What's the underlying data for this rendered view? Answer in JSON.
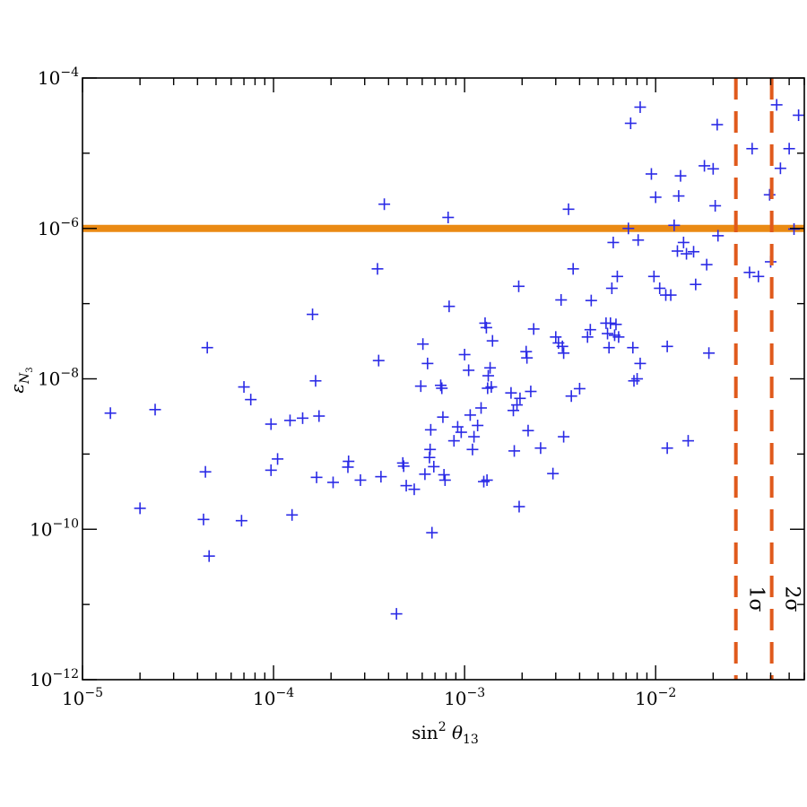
{
  "chart_data": {
    "type": "scatter",
    "x_scale": "log",
    "y_scale": "log",
    "xlim": [
      1e-05,
      0.06
    ],
    "ylim": [
      1e-12,
      0.0001
    ],
    "xlabel": {
      "base": "sin",
      "sup": "2",
      "sym": "θ",
      "sub": "13"
    },
    "ylabel": {
      "sym": "ε",
      "sub": "N",
      "subsub": "3"
    },
    "x_major_ticks": [
      {
        "value": 1e-05,
        "base": "10",
        "exp": "−5"
      },
      {
        "value": 0.0001,
        "base": "10",
        "exp": "−4"
      },
      {
        "value": 0.001,
        "base": "10",
        "exp": "−3"
      },
      {
        "value": 0.01,
        "base": "10",
        "exp": "−2"
      }
    ],
    "y_major_ticks": [
      {
        "value": 1e-12,
        "base": "10",
        "exp": "−12"
      },
      {
        "value": 1e-10,
        "base": "10",
        "exp": "−10"
      },
      {
        "value": 1e-08,
        "base": "10",
        "exp": "−8"
      },
      {
        "value": 1e-06,
        "base": "10",
        "exp": "−6"
      },
      {
        "value": 0.0001,
        "base": "10",
        "exp": "−4"
      }
    ],
    "marker": "+",
    "marker_color": "#2a2ae6",
    "hline": {
      "y": 1e-06,
      "color": "#ea8a14"
    },
    "vlines": [
      {
        "x": 0.0263,
        "label": "1σ",
        "color": "#e05a1c"
      },
      {
        "x": 0.0405,
        "label": "2σ",
        "color": "#e05a1c"
      }
    ],
    "points": [
      [
        1.4e-05,
        3.5e-09
      ],
      [
        2.4e-05,
        3.9e-09
      ],
      [
        2e-05,
        1.9e-10
      ],
      [
        4.3e-05,
        1.35e-10
      ],
      [
        4.4e-05,
        5.8e-10
      ],
      [
        4.6e-05,
        4.4e-11
      ],
      [
        4.5e-05,
        2.6e-08
      ],
      [
        6.8e-05,
        1.3e-10
      ],
      [
        7e-05,
        7.8e-09
      ],
      [
        7.6e-05,
        5.3e-09
      ],
      [
        9.7e-05,
        2.5e-09
      ],
      [
        9.7e-05,
        6.1e-10
      ],
      [
        0.000105,
        8.6e-10
      ],
      [
        0.000122,
        2.8e-09
      ],
      [
        0.000125,
        1.55e-10
      ],
      [
        0.000142,
        3e-09
      ],
      [
        0.00016,
        7.2e-08
      ],
      [
        0.000166,
        9.4e-09
      ],
      [
        0.000168,
        4.9e-10
      ],
      [
        0.000173,
        3.2e-09
      ],
      [
        0.000205,
        4.2e-10
      ],
      [
        0.000245,
        6.7e-10
      ],
      [
        0.000247,
        8e-10
      ],
      [
        0.000285,
        4.5e-10
      ],
      [
        0.00035,
        2.9e-07
      ],
      [
        0.000355,
        1.75e-08
      ],
      [
        0.000365,
        5e-10
      ],
      [
        0.00038,
        2.1e-06
      ],
      [
        0.00044,
        7.5e-12
      ],
      [
        0.00048,
        6.9e-10
      ],
      [
        0.000475,
        7.6e-10
      ],
      [
        0.000495,
        3.8e-10
      ],
      [
        0.000545,
        3.4e-10
      ],
      [
        0.00059,
        8e-09
      ],
      [
        0.000605,
        2.9e-08
      ],
      [
        0.00062,
        5.4e-10
      ],
      [
        0.00064,
        1.6e-08
      ],
      [
        0.000655,
        9e-10
      ],
      [
        0.00066,
        1.15e-09
      ],
      [
        0.000665,
        2.1e-09
      ],
      [
        0.000675,
        9e-11
      ],
      [
        0.00069,
        6.8e-10
      ],
      [
        0.00075,
        8.2e-09
      ],
      [
        0.00076,
        7.5e-09
      ],
      [
        0.00077,
        3.1e-09
      ],
      [
        0.00078,
        5.3e-10
      ],
      [
        0.00079,
        4.5e-10
      ],
      [
        0.00082,
        1.4e-06
      ],
      [
        0.00083,
        9.2e-08
      ],
      [
        0.00088,
        1.5e-09
      ],
      [
        0.00092,
        2.3e-09
      ],
      [
        0.00096,
        1.95e-09
      ],
      [
        0.001,
        2.1e-08
      ],
      [
        0.00105,
        1.3e-08
      ],
      [
        0.00107,
        3.3e-09
      ],
      [
        0.0011,
        1.15e-09
      ],
      [
        0.00112,
        1.7e-09
      ],
      [
        0.00117,
        2.4e-09
      ],
      [
        0.00122,
        4.1e-09
      ],
      [
        0.00126,
        4.3e-10
      ],
      [
        0.00128,
        5.5e-08
      ],
      [
        0.0013,
        4.8e-08
      ],
      [
        0.00131,
        4.5e-10
      ],
      [
        0.00132,
        7.5e-09
      ],
      [
        0.00133,
        1.1e-08
      ],
      [
        0.00136,
        1.4e-08
      ],
      [
        0.00138,
        7.8e-09
      ],
      [
        0.0014,
        3.2e-08
      ],
      [
        0.00175,
        6.5e-09
      ],
      [
        0.0018,
        3.8e-09
      ],
      [
        0.00182,
        1.1e-09
      ],
      [
        0.00188,
        4.5e-09
      ],
      [
        0.00192,
        1.7e-07
      ],
      [
        0.00193,
        2e-10
      ],
      [
        0.00195,
        5.5e-09
      ],
      [
        0.0021,
        2.3e-08
      ],
      [
        0.00212,
        1.9e-08
      ],
      [
        0.00215,
        2.05e-09
      ],
      [
        0.00222,
        6.8e-09
      ],
      [
        0.0023,
        4.6e-08
      ],
      [
        0.0025,
        1.2e-09
      ],
      [
        0.0029,
        5.5e-10
      ],
      [
        0.003,
        3.6e-08
      ],
      [
        0.0031,
        3e-08
      ],
      [
        0.0032,
        1.12e-07
      ],
      [
        0.00325,
        2.7e-08
      ],
      [
        0.0033,
        2.2e-08
      ],
      [
        0.0033,
        1.7e-09
      ],
      [
        0.0035,
        1.8e-06
      ],
      [
        0.00362,
        5.9e-09
      ],
      [
        0.0037,
        2.9e-07
      ],
      [
        0.004,
        7.4e-09
      ],
      [
        0.0044,
        3.6e-08
      ],
      [
        0.00455,
        4.5e-08
      ],
      [
        0.0046,
        1.1e-07
      ],
      [
        0.0055,
        5.5e-08
      ],
      [
        0.0056,
        4e-08
      ],
      [
        0.0057,
        2.6e-08
      ],
      [
        0.0058,
        5.5e-08
      ],
      [
        0.0059,
        1.6e-07
      ],
      [
        0.006,
        6.5e-07
      ],
      [
        0.0061,
        3.8e-08
      ],
      [
        0.0062,
        5.3e-08
      ],
      [
        0.0063,
        2.3e-07
      ],
      [
        0.0064,
        3.6e-08
      ],
      [
        0.0072,
        1e-06
      ],
      [
        0.0074,
        2.5e-05
      ],
      [
        0.0076,
        2.6e-08
      ],
      [
        0.0077,
        9.4e-09
      ],
      [
        0.008,
        1e-08
      ],
      [
        0.0081,
        7e-07
      ],
      [
        0.0083,
        4.1e-05
      ],
      [
        0.0083,
        1.6e-08
      ],
      [
        0.0095,
        5.3e-06
      ],
      [
        0.0098,
        2.3e-07
      ],
      [
        0.01,
        2.6e-06
      ],
      [
        0.0105,
        1.6e-07
      ],
      [
        0.0113,
        1.3e-07
      ],
      [
        0.0115,
        2.7e-08
      ],
      [
        0.0115,
        1.2e-09
      ],
      [
        0.012,
        1.3e-07
      ],
      [
        0.0125,
        1.1e-06
      ],
      [
        0.013,
        5e-07
      ],
      [
        0.0132,
        2.7e-06
      ],
      [
        0.0135,
        5e-06
      ],
      [
        0.014,
        6.5e-07
      ],
      [
        0.0145,
        4.6e-07
      ],
      [
        0.0148,
        1.5e-09
      ],
      [
        0.0158,
        4.9e-07
      ],
      [
        0.0162,
        1.8e-07
      ],
      [
        0.018,
        6.8e-06
      ],
      [
        0.0185,
        3.3e-07
      ],
      [
        0.019,
        2.2e-08
      ],
      [
        0.02,
        6.2e-06
      ],
      [
        0.0205,
        2e-06
      ],
      [
        0.021,
        2.4e-05
      ],
      [
        0.0212,
        8e-07
      ],
      [
        0.031,
        2.6e-07
      ],
      [
        0.032,
        1.15e-05
      ],
      [
        0.0345,
        2.3e-07
      ],
      [
        0.0395,
        2.8e-06
      ],
      [
        0.04,
        3.6e-07
      ],
      [
        0.043,
        4.4e-05
      ],
      [
        0.045,
        6.3e-06
      ],
      [
        0.05,
        1.15e-05
      ],
      [
        0.056,
        3.2e-05
      ],
      [
        0.053,
        9.8e-07
      ]
    ]
  }
}
